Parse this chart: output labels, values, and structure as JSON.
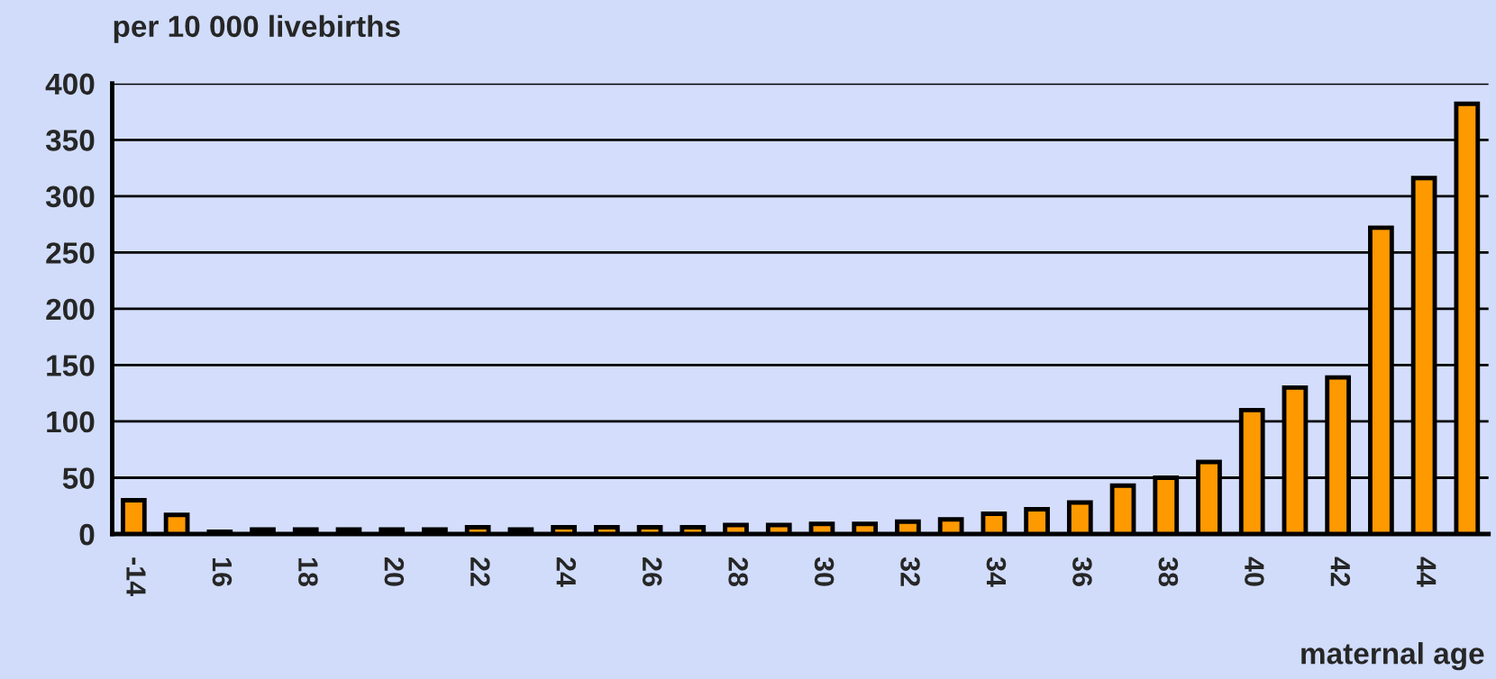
{
  "chart_data": {
    "type": "bar",
    "ylabel": "per 10 000 livebirths",
    "xlabel": "maternal age",
    "categories": [
      "-14",
      null,
      "16",
      null,
      "18",
      null,
      "20",
      null,
      "22",
      null,
      "24",
      null,
      "26",
      null,
      "28",
      null,
      "30",
      null,
      "32",
      null,
      "34",
      null,
      "36",
      null,
      "38",
      null,
      "40",
      null,
      "42",
      null,
      "44",
      null
    ],
    "values": [
      30,
      17,
      2,
      4,
      4,
      4,
      4,
      4,
      6,
      4,
      6,
      6,
      6,
      6,
      8,
      8,
      9,
      9,
      11,
      13,
      18,
      22,
      28,
      43,
      50,
      64,
      110,
      130,
      139,
      272,
      316,
      382
    ],
    "color": "#ff9900",
    "ylim": [
      0,
      400
    ],
    "yticks": [
      0,
      50,
      100,
      150,
      200,
      250,
      300,
      350,
      400
    ],
    "grid": "y",
    "legend": false
  }
}
